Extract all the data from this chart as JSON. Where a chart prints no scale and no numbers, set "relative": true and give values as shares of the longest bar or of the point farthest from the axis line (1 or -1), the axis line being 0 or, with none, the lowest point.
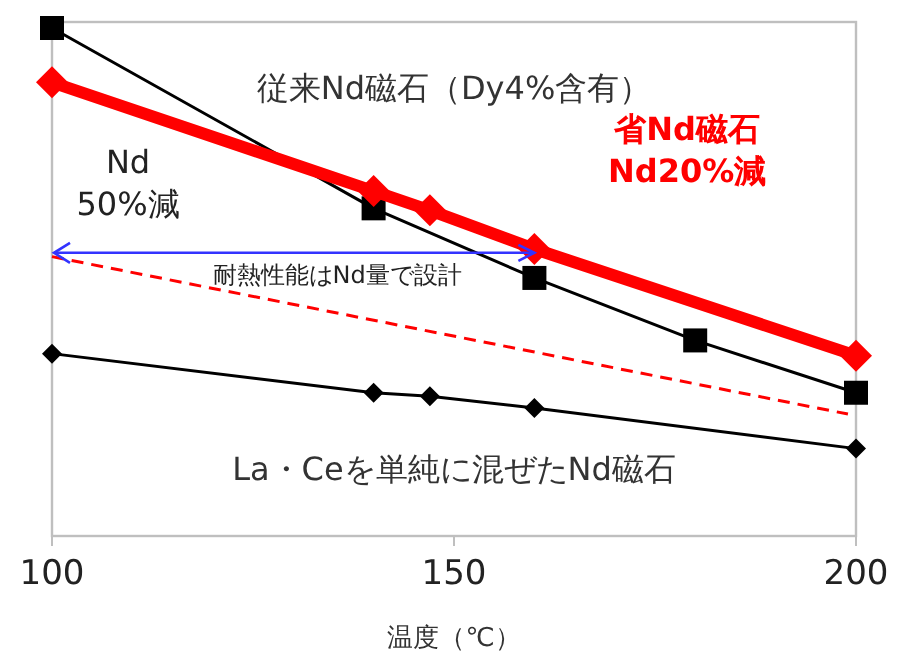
{
  "chart_data": {
    "type": "line",
    "relative": true,
    "xlabel": "温度（℃）",
    "xlim": [
      100,
      200
    ],
    "xticks": [
      100,
      150,
      200
    ],
    "grid": false,
    "legend": false,
    "series": [
      {
        "name": "従来Nd磁石（Dy4%含有）",
        "color": "#000000",
        "marker": "square",
        "line_style": "solid",
        "x": [
          100,
          140,
          160,
          180,
          200
        ],
        "values": [
          1,
          0.645,
          0.508,
          0.385,
          0.282
        ]
      },
      {
        "name": "省Nd磁石\nNd20%減",
        "color": "#ff0000",
        "marker": "diamond",
        "line_style": "solid",
        "x": [
          100,
          140,
          147,
          160,
          200
        ],
        "values": [
          0.893,
          0.679,
          0.641,
          0.565,
          0.355
        ]
      },
      {
        "name": "La・Ceを単純に混ぜたNd磁石",
        "color": "#000000",
        "marker": "diamond",
        "line_style": "solid",
        "x": [
          100,
          140,
          147,
          160,
          200
        ],
        "values": [
          0.359,
          0.282,
          0.275,
          0.252,
          0.172
        ]
      },
      {
        "color": "#ff0000",
        "marker": "none",
        "line_style": "dashed",
        "x": [
          100,
          199
        ],
        "values": [
          0.55,
          0.24
        ]
      }
    ],
    "annotations": [
      "Nd\n50%減",
      "耐熱性能はNd量で設計"
    ]
  }
}
